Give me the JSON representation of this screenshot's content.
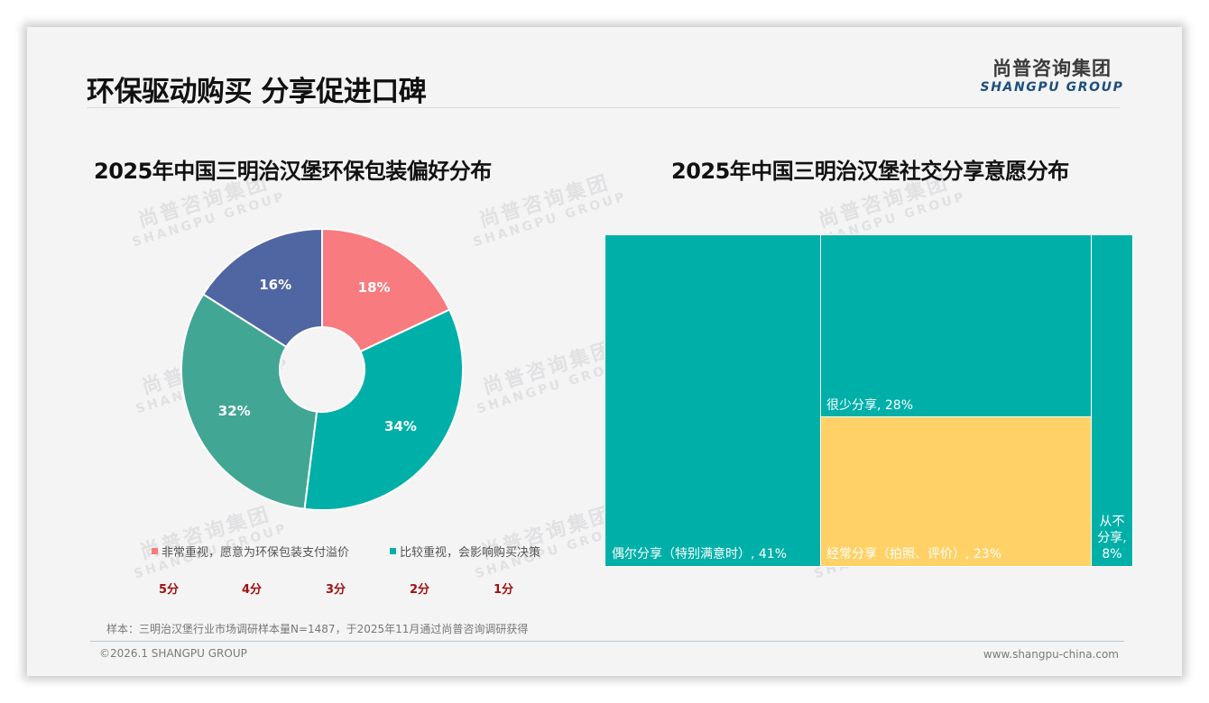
{
  "header": {
    "title": "环保驱动购买 分享促进口碑",
    "logo_cn": "尚普咨询集团",
    "logo_en": "SHANGPU GROUP"
  },
  "watermark": {
    "cn": "尚普咨询集团",
    "en": "SHANGPU GROUP"
  },
  "colors": {
    "pink": "#f77b7f",
    "teal": "#00b0a8",
    "green_teal": "#42a695",
    "blue": "#5066a2",
    "yellow": "#ffd166",
    "score_red": "#a01010",
    "footer_line": "#b7c6d3"
  },
  "chart_data": [
    {
      "type": "pie",
      "title": "2025年中国三明治汉堡环保包装偏好分布",
      "donut": true,
      "labels": [
        "非常重视，愿意为环保包装支付溢价",
        "比较重视，会影响购买决策",
        "",
        ""
      ],
      "values": [
        18,
        34,
        32,
        16
      ],
      "value_labels": [
        "18%",
        "34%",
        "32%",
        "16%"
      ],
      "colors": [
        "#f77b7f",
        "#00b0a8",
        "#42a695",
        "#5066a2"
      ],
      "legend": [
        {
          "label": "非常重视，愿意为环保包装支付溢价",
          "color": "#f77b7f"
        },
        {
          "label": "比较重视，会影响购买决策",
          "color": "#00b0a8"
        }
      ],
      "score_labels": [
        "5分",
        "4分",
        "3分",
        "2分",
        "1分"
      ]
    },
    {
      "type": "treemap",
      "title": "2025年中国三明治汉堡社交分享意愿分布",
      "labels": [
        "偶尔分享（特别满意时）",
        "很少分享",
        "经常分享（拍照、评价）",
        "从不分享"
      ],
      "values": [
        41,
        28,
        23,
        8
      ],
      "colors": [
        "#00b0a8",
        "#00b0a8",
        "#ffd166",
        "#00b0a8"
      ]
    }
  ],
  "pie": {
    "slices": [
      {
        "value": 18,
        "label": "18%",
        "color": "#f77b7f"
      },
      {
        "value": 34,
        "label": "34%",
        "color": "#00b0a8"
      },
      {
        "value": 32,
        "label": "32%",
        "color": "#42a695"
      },
      {
        "value": 16,
        "label": "16%",
        "color": "#5066a2"
      }
    ],
    "legend": [
      {
        "label": "非常重视，愿意为环保包装支付溢价",
        "color": "#f77b7f"
      },
      {
        "label": "比较重视，会影响购买决策",
        "color": "#00b0a8"
      }
    ],
    "scores": [
      "5分",
      "4分",
      "3分",
      "2分",
      "1分"
    ]
  },
  "treemap": {
    "cells": [
      {
        "label": "偶尔分享（特别满意时）, 41%",
        "color": "#00b0a8"
      },
      {
        "label": "很少分享, 28%",
        "color": "#00b0a8"
      },
      {
        "label": "经常分享（拍照、评价）, 23%",
        "color": "#ffd166"
      },
      {
        "label_lines": [
          "从不",
          "分享,",
          "8%"
        ],
        "color": "#00b0a8"
      }
    ]
  },
  "footer": {
    "sample_note": "样本：三明治汉堡行业市场调研样本量N=1487，于2025年11月通过尚普咨询调研获得",
    "copyright": "©2026.1 SHANGPU GROUP",
    "website": "www.shangpu-china.com"
  }
}
